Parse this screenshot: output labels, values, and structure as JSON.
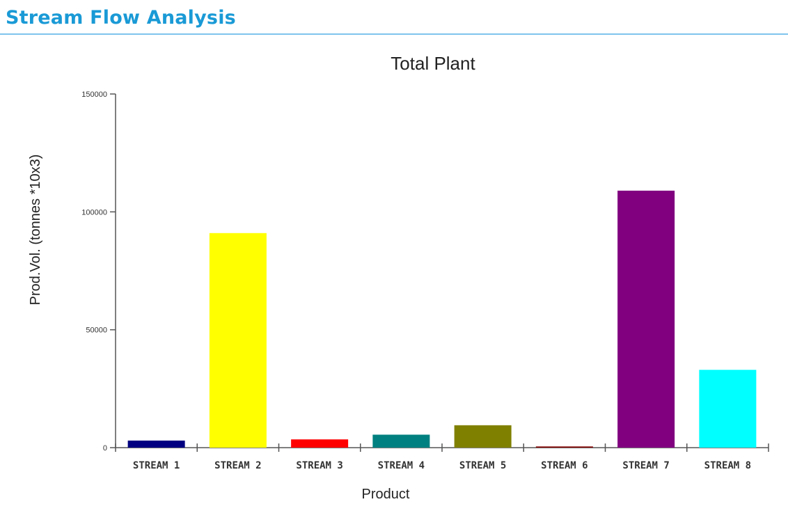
{
  "page": {
    "title": "Stream Flow Analysis"
  },
  "colors": {
    "title": "#1a9ad6",
    "header_rule": "#7ec4ec"
  },
  "chart_data": {
    "type": "bar",
    "title": "Total Plant",
    "xlabel": "Product",
    "ylabel": "Prod.Vol. (tonnes *10x3)",
    "ylim": [
      0,
      150000
    ],
    "yticks": [
      0,
      50000,
      100000,
      150000
    ],
    "grid": false,
    "categories": [
      "STREAM 1",
      "STREAM 2",
      "STREAM 3",
      "STREAM 4",
      "STREAM 5",
      "STREAM 6",
      "STREAM 7",
      "STREAM 8"
    ],
    "values": [
      3000,
      91000,
      3500,
      5500,
      9500,
      500,
      109000,
      33000
    ],
    "colors": [
      "#000080",
      "#ffff00",
      "#ff0000",
      "#008080",
      "#808000",
      "#800000",
      "#800080",
      "#00ffff"
    ]
  }
}
